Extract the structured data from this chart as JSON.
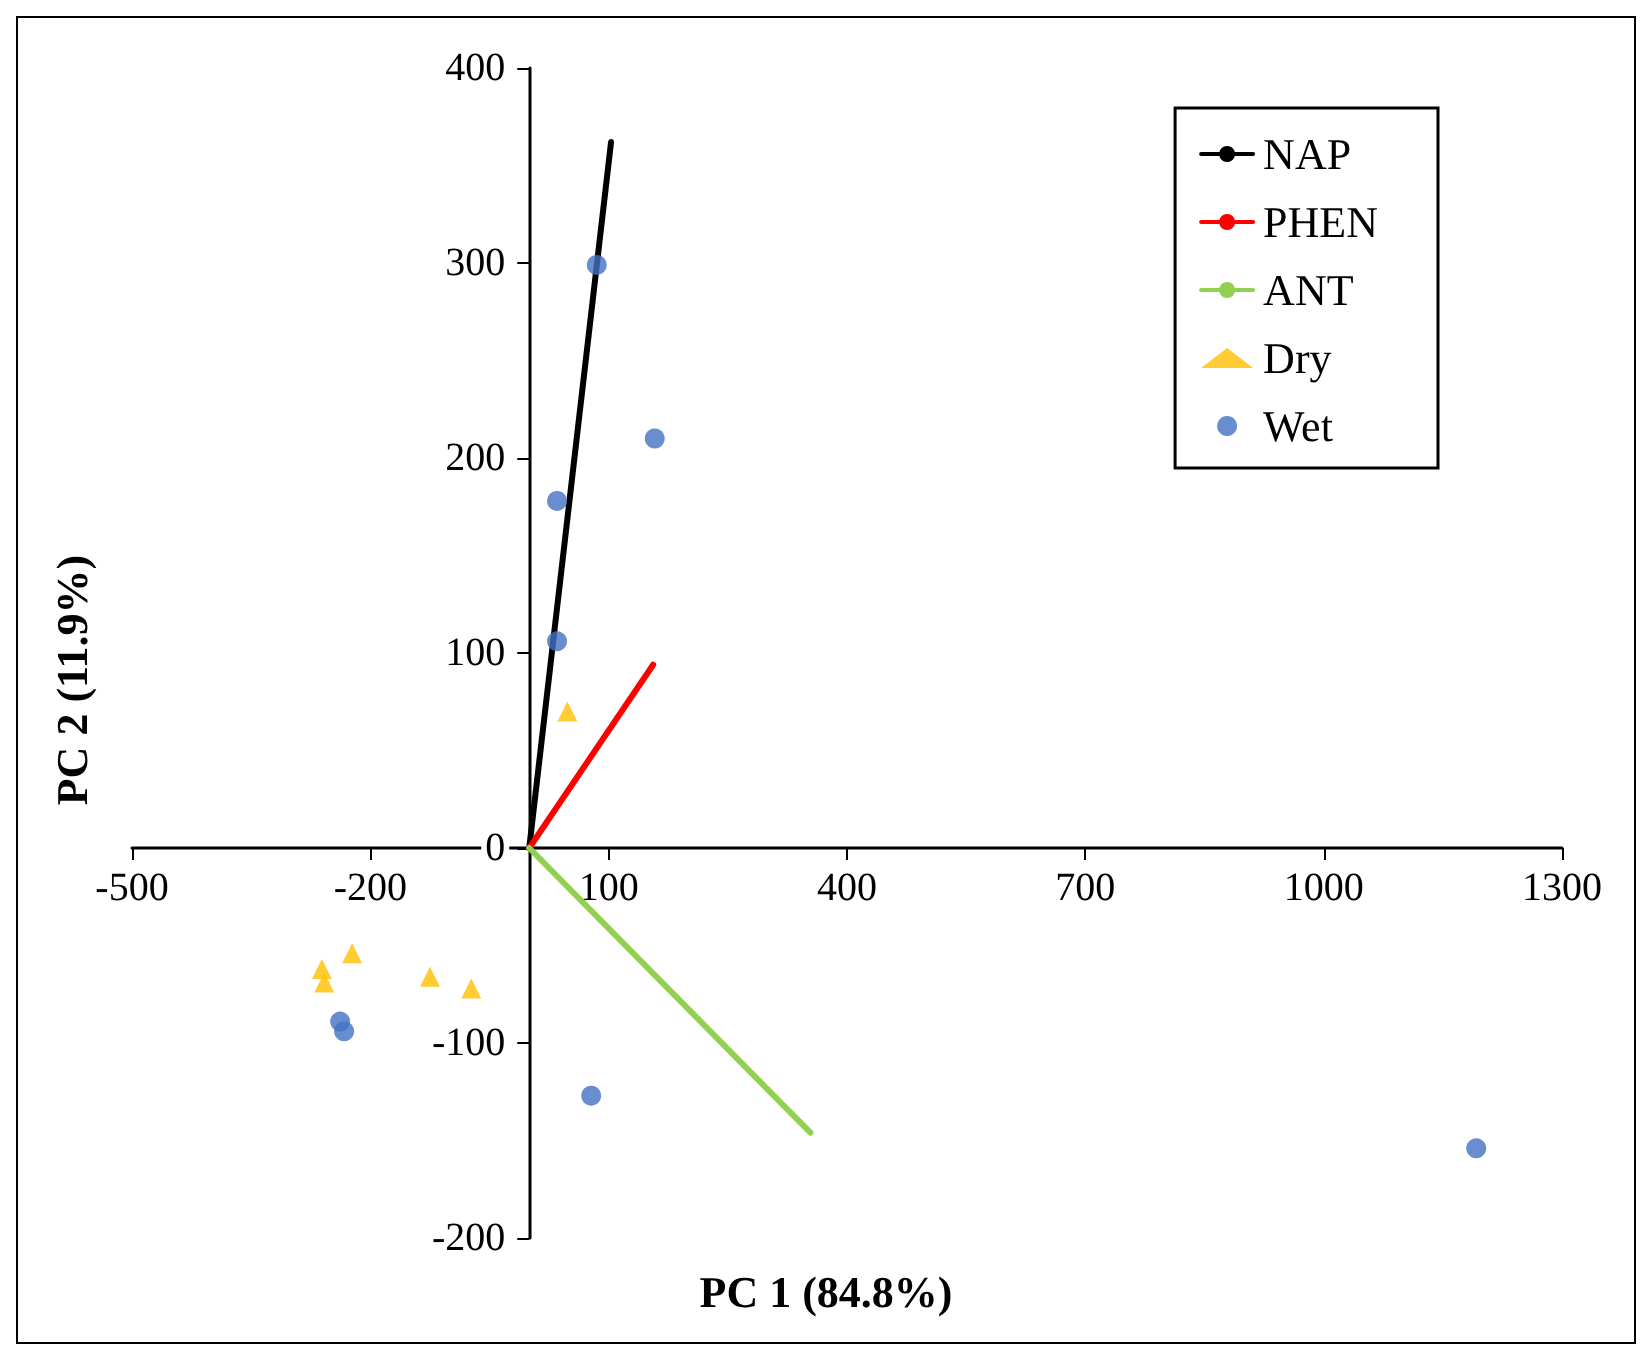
{
  "chart_data": {
    "type": "scatter",
    "xlabel": "PC 1 (84.8%)",
    "ylabel": "PC 2 (11.9%)",
    "xlim": [
      -500,
      1300
    ],
    "xticks": [
      -500,
      -200,
      100,
      400,
      700,
      1000,
      1300
    ],
    "ylim": [
      -200,
      400
    ],
    "yticks": [
      -200,
      -100,
      0,
      100,
      200,
      300,
      400
    ],
    "grid": false,
    "legend": "top right",
    "series": [
      {
        "name": "NAP",
        "type": "line",
        "color": "#000000",
        "marker": "none",
        "x": [
          0,
          103
        ],
        "values": [
          0,
          362
        ]
      },
      {
        "name": "PHEN",
        "type": "line",
        "color": "#ff0000",
        "marker": "none",
        "x": [
          0,
          156
        ],
        "values": [
          0,
          94
        ]
      },
      {
        "name": "ANT",
        "type": "line",
        "color": "#92d050",
        "marker": "none",
        "x": [
          0,
          354
        ],
        "values": [
          0,
          -146
        ]
      },
      {
        "name": "Dry",
        "type": "scatter",
        "color": "#ffc000",
        "marker": "triangle",
        "x": [
          48,
          -261,
          -258,
          -223,
          -125,
          -73
        ],
        "values": [
          70,
          -62,
          -69,
          -54,
          -66,
          -72
        ]
      },
      {
        "name": "Wet",
        "type": "scatter",
        "color": "#4472c4",
        "marker": "circle",
        "x": [
          85,
          158,
          35,
          35,
          -238,
          -233,
          78,
          1192
        ],
        "values": [
          299,
          210,
          178,
          106,
          -89,
          -94,
          -127,
          -154
        ]
      }
    ]
  }
}
